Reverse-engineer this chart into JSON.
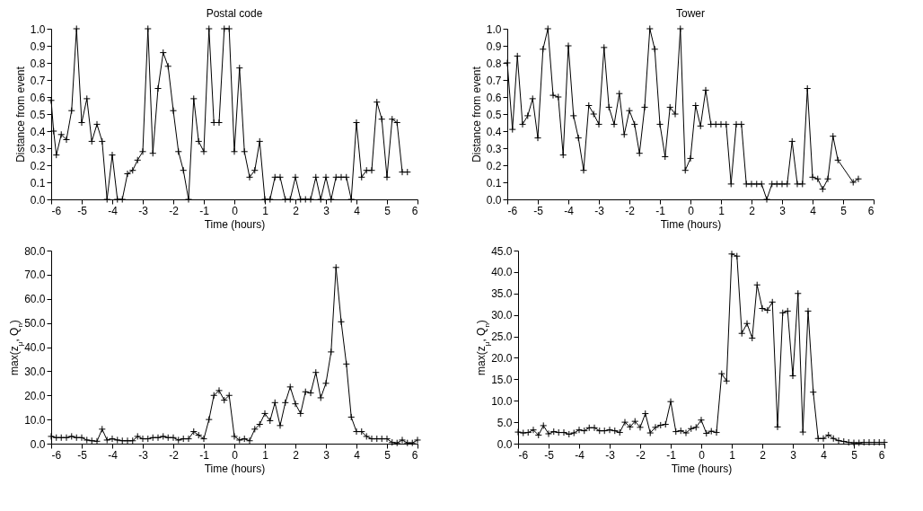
{
  "chart_data": [
    {
      "type": "line",
      "title": "Postal code",
      "xlabel": "Time (hours)",
      "ylabel": "Distance from event",
      "marker": "cross",
      "grid": false,
      "xlim": [
        -6,
        6
      ],
      "xticks": [
        -6,
        -5,
        -4,
        -3,
        -2,
        -1,
        0,
        1,
        2,
        3,
        4,
        5,
        6
      ],
      "ylim": [
        0,
        1
      ],
      "yticks": [
        {
          "value": 0,
          "label": "0.0"
        },
        {
          "value": 0.1,
          "label": "0.1"
        },
        {
          "value": 0.2,
          "label": "0.2"
        },
        {
          "value": 0.3,
          "label": "0.3"
        },
        {
          "value": 0.4,
          "label": "0.4"
        },
        {
          "value": 0.5,
          "label": "0.5"
        },
        {
          "value": 0.6,
          "label": "0.6"
        },
        {
          "value": 0.7,
          "label": "0.7"
        },
        {
          "value": 0.8,
          "label": "0.8"
        },
        {
          "value": 0.9,
          "label": "0.9"
        },
        {
          "value": 1,
          "label": "1.0"
        }
      ],
      "series": [
        {
          "color": "#000000",
          "x": [
            -6,
            -5.92,
            -5.83,
            -5.67,
            -5.5,
            -5.33,
            -5.17,
            -5,
            -4.83,
            -4.67,
            -4.5,
            -4.33,
            -4.17,
            -4,
            -3.83,
            -3.67,
            -3.5,
            -3.33,
            -3.17,
            -3,
            -2.83,
            -2.67,
            -2.5,
            -2.33,
            -2.17,
            -2,
            -1.83,
            -1.67,
            -1.5,
            -1.33,
            -1.17,
            -1,
            -0.83,
            -0.67,
            -0.5,
            -0.33,
            -0.17,
            0,
            0.17,
            0.33,
            0.5,
            0.67,
            0.83,
            1,
            1.17,
            1.33,
            1.5,
            1.67,
            1.83,
            2,
            2.17,
            2.33,
            2.5,
            2.67,
            2.83,
            3,
            3.17,
            3.33,
            3.5,
            3.67,
            3.83,
            4,
            4.17,
            4.33,
            4.5,
            4.67,
            4.83,
            5,
            5.17,
            5.33,
            5.5,
            5.67
          ],
          "values": [
            0.58,
            0.4,
            0.26,
            0.38,
            0.35,
            0.52,
            1.0,
            0.45,
            0.59,
            0.34,
            0.44,
            0.34,
            0.0,
            0.26,
            0.0,
            0.0,
            0.15,
            0.17,
            0.23,
            0.28,
            1.0,
            0.27,
            0.65,
            0.86,
            0.78,
            0.52,
            0.28,
            0.17,
            0.0,
            0.59,
            0.34,
            0.28,
            1.0,
            0.45,
            0.45,
            1.0,
            1.0,
            0.28,
            0.77,
            0.28,
            0.13,
            0.17,
            0.34,
            0.0,
            0.0,
            0.13,
            0.13,
            0.0,
            0.0,
            0.13,
            0.0,
            0.0,
            0.0,
            0.13,
            0.0,
            0.13,
            0.0,
            0.13,
            0.13,
            0.13,
            0.0,
            0.45,
            0.13,
            0.17,
            0.17,
            0.57,
            0.47,
            0.13,
            0.47,
            0.45,
            0.16,
            0.16
          ]
        }
      ]
    },
    {
      "type": "line",
      "title": "Tower",
      "xlabel": "Time (hours)",
      "ylabel": "Distance from event",
      "marker": "cross",
      "grid": false,
      "xlim": [
        -6,
        6
      ],
      "xticks": [
        -6,
        -5,
        -4,
        -3,
        -2,
        -1,
        0,
        1,
        2,
        3,
        4,
        5,
        6
      ],
      "ylim": [
        0,
        1
      ],
      "yticks": [
        {
          "value": 0,
          "label": "0.0"
        },
        {
          "value": 0.1,
          "label": "0.1"
        },
        {
          "value": 0.2,
          "label": "0.2"
        },
        {
          "value": 0.3,
          "label": "0.3"
        },
        {
          "value": 0.4,
          "label": "0.4"
        },
        {
          "value": 0.5,
          "label": "0.5"
        },
        {
          "value": 0.6,
          "label": "0.6"
        },
        {
          "value": 0.7,
          "label": "0.7"
        },
        {
          "value": 0.8,
          "label": "0.8"
        },
        {
          "value": 0.9,
          "label": "0.9"
        },
        {
          "value": 1,
          "label": "1.0"
        }
      ],
      "series": [
        {
          "color": "#000000",
          "x": [
            -6,
            -5.83,
            -5.67,
            -5.5,
            -5.33,
            -5.17,
            -5,
            -4.83,
            -4.67,
            -4.5,
            -4.33,
            -4.17,
            -4,
            -3.83,
            -3.67,
            -3.5,
            -3.33,
            -3.17,
            -3,
            -2.83,
            -2.67,
            -2.5,
            -2.33,
            -2.17,
            -2,
            -1.83,
            -1.67,
            -1.5,
            -1.33,
            -1.17,
            -1,
            -0.83,
            -0.67,
            -0.5,
            -0.33,
            -0.17,
            0,
            0.17,
            0.33,
            0.5,
            0.67,
            0.83,
            1,
            1.17,
            1.33,
            1.5,
            1.67,
            1.83,
            2,
            2.17,
            2.33,
            2.5,
            2.67,
            2.83,
            3,
            3.17,
            3.33,
            3.5,
            3.67,
            3.83,
            4,
            4.17,
            4.33,
            4.5,
            4.67,
            4.83,
            5.33,
            5.5
          ],
          "values": [
            0.8,
            0.41,
            0.84,
            0.44,
            0.49,
            0.59,
            0.36,
            0.88,
            1.0,
            0.61,
            0.6,
            0.26,
            0.9,
            0.49,
            0.36,
            0.17,
            0.55,
            0.5,
            0.44,
            0.89,
            0.54,
            0.44,
            0.62,
            0.38,
            0.52,
            0.44,
            0.27,
            0.54,
            1.0,
            0.88,
            0.44,
            0.25,
            0.54,
            0.5,
            1.0,
            0.17,
            0.24,
            0.55,
            0.43,
            0.64,
            0.44,
            0.44,
            0.44,
            0.44,
            0.09,
            0.44,
            0.44,
            0.09,
            0.09,
            0.09,
            0.09,
            0.0,
            0.09,
            0.09,
            0.09,
            0.09,
            0.34,
            0.09,
            0.09,
            0.65,
            0.13,
            0.12,
            0.06,
            0.12,
            0.37,
            0.23,
            0.1,
            0.12
          ]
        }
      ]
    },
    {
      "type": "line",
      "xlabel": "Time (hours)",
      "ylabel": "max(z$_{μ}$, Q$_{n}$)",
      "marker": "cross",
      "grid": false,
      "xlim": [
        -6,
        6
      ],
      "xticks": [
        -6,
        -5,
        -4,
        -3,
        -2,
        -1,
        0,
        1,
        2,
        3,
        4,
        5,
        6
      ],
      "ylim": [
        0,
        80
      ],
      "yticks": [
        {
          "value": 0,
          "label": "0.0"
        },
        {
          "value": 10,
          "label": "10.0"
        },
        {
          "value": 20,
          "label": "20.0"
        },
        {
          "value": 30,
          "label": "30.0"
        },
        {
          "value": 40,
          "label": "40.0"
        },
        {
          "value": 50,
          "label": "50.0"
        },
        {
          "value": 60,
          "label": "60.0"
        },
        {
          "value": 70,
          "label": "70.0"
        },
        {
          "value": 80,
          "label": "80.0"
        }
      ],
      "series": [
        {
          "color": "#000000",
          "x": [
            -6,
            -5.83,
            -5.67,
            -5.5,
            -5.33,
            -5.17,
            -5,
            -4.83,
            -4.67,
            -4.5,
            -4.33,
            -4.17,
            -4,
            -3.83,
            -3.67,
            -3.5,
            -3.33,
            -3.17,
            -3,
            -2.83,
            -2.67,
            -2.5,
            -2.33,
            -2.17,
            -2,
            -1.83,
            -1.67,
            -1.5,
            -1.33,
            -1.17,
            -1,
            -0.83,
            -0.67,
            -0.5,
            -0.33,
            -0.17,
            0,
            0.17,
            0.33,
            0.5,
            0.67,
            0.83,
            1,
            1.17,
            1.33,
            1.5,
            1.67,
            1.83,
            2,
            2.17,
            2.33,
            2.5,
            2.67,
            2.83,
            3,
            3.17,
            3.33,
            3.5,
            3.67,
            3.83,
            4,
            4.17,
            4.33,
            4.5,
            4.67,
            4.83,
            5,
            5.17,
            5.33,
            5.5,
            5.67,
            5.83,
            6
          ],
          "values": [
            3,
            2.5,
            2.5,
            2.5,
            3,
            2.5,
            2.5,
            1.5,
            1.2,
            1.0,
            6,
            1.5,
            2,
            1.5,
            1.2,
            1.2,
            1.2,
            3,
            2,
            2,
            2.5,
            2.5,
            3,
            2.5,
            2.5,
            1.5,
            2,
            2,
            5,
            3.5,
            2,
            10,
            20,
            22,
            18,
            20,
            3,
            1.5,
            2,
            1.2,
            6,
            8,
            12.5,
            9.5,
            17,
            7.5,
            17,
            23.5,
            16.5,
            12.5,
            21.5,
            21,
            29.5,
            19,
            25,
            38,
            73,
            50.5,
            33,
            11,
            5,
            5,
            3,
            2,
            2,
            2,
            2,
            0.5,
            0.3,
            1.5,
            0.3,
            0.3,
            1.5
          ]
        }
      ]
    },
    {
      "type": "line",
      "xlabel": "Time (hours)",
      "ylabel": "max(z$_{μ}$, Q$_{n}$)",
      "marker": "cross",
      "grid": false,
      "xlim": [
        -6,
        6
      ],
      "xticks": [
        -6,
        -5,
        -4,
        -3,
        -2,
        -1,
        0,
        1,
        2,
        3,
        4,
        5,
        6
      ],
      "ylim": [
        0,
        45
      ],
      "yticks": [
        {
          "value": 0,
          "label": "0.0"
        },
        {
          "value": 5,
          "label": "5.0"
        },
        {
          "value": 10,
          "label": "10.0"
        },
        {
          "value": 15,
          "label": "15.0"
        },
        {
          "value": 20,
          "label": "20.0"
        },
        {
          "value": 25,
          "label": "25.0"
        },
        {
          "value": 30,
          "label": "30.0"
        },
        {
          "value": 35,
          "label": "35.0"
        },
        {
          "value": 40,
          "label": "40.0"
        },
        {
          "value": 45,
          "label": "45.0"
        }
      ],
      "series": [
        {
          "color": "#000000",
          "x": [
            -6,
            -5.83,
            -5.67,
            -5.5,
            -5.33,
            -5.17,
            -5,
            -4.83,
            -4.67,
            -4.5,
            -4.33,
            -4.17,
            -4,
            -3.83,
            -3.67,
            -3.5,
            -3.33,
            -3.17,
            -3,
            -2.83,
            -2.67,
            -2.5,
            -2.33,
            -2.17,
            -2,
            -1.83,
            -1.67,
            -1.5,
            -1.33,
            -1.17,
            -1,
            -0.83,
            -0.67,
            -0.5,
            -0.33,
            -0.17,
            0,
            0.17,
            0.33,
            0.5,
            0.67,
            0.83,
            1,
            1.17,
            1.33,
            1.5,
            1.67,
            1.83,
            2,
            2.17,
            2.33,
            2.5,
            2.67,
            2.83,
            3,
            3.17,
            3.33,
            3.5,
            3.67,
            3.83,
            4,
            4.17,
            4.33,
            4.5,
            4.67,
            4.83,
            5,
            5.17,
            5.33,
            5.5,
            5.67,
            5.83,
            6
          ],
          "values": [
            2.7,
            2.5,
            2.6,
            3.2,
            2.0,
            4.2,
            2.3,
            2.8,
            2.6,
            2.6,
            2.2,
            2.5,
            3.2,
            3.0,
            3.7,
            3.7,
            3.0,
            3.0,
            3.2,
            3.0,
            2.6,
            5.0,
            3.9,
            5.2,
            3.8,
            7.0,
            2.5,
            3.8,
            4.3,
            4.5,
            9.8,
            2.8,
            3.0,
            2.5,
            3.5,
            3.8,
            5.5,
            2.4,
            2.9,
            2.6,
            16.3,
            14.6,
            44.2,
            43.7,
            25.7,
            28.0,
            24.6,
            37.0,
            31.5,
            31.1,
            33.0,
            3.9,
            30.5,
            30.9,
            15.8,
            35.0,
            2.7,
            30.9,
            12.0,
            1.2,
            1.2,
            2.0,
            1.2,
            0.7,
            0.5,
            0.3,
            0.2,
            0.2,
            0.3,
            0.3,
            0.3,
            0.3,
            0.3
          ]
        }
      ]
    }
  ]
}
